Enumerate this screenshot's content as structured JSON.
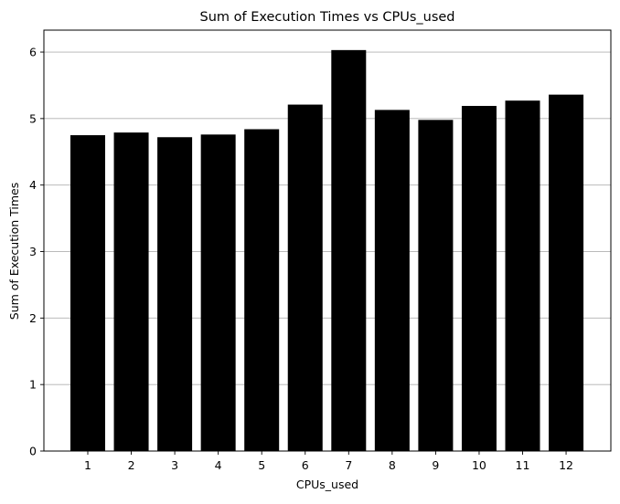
{
  "chart_data": {
    "type": "bar",
    "title": "Sum of Execution Times vs CPUs_used",
    "xlabel": "CPUs_used",
    "ylabel": "Sum of Execution Times",
    "categories": [
      "1",
      "2",
      "3",
      "4",
      "5",
      "6",
      "7",
      "8",
      "9",
      "10",
      "11",
      "12"
    ],
    "values": [
      4.75,
      4.79,
      4.72,
      4.76,
      4.84,
      5.21,
      6.03,
      5.13,
      4.98,
      5.19,
      5.27,
      5.36
    ],
    "yticks": [
      "0",
      "1",
      "2",
      "3",
      "4",
      "5",
      "6"
    ],
    "ylim": [
      0,
      6.33
    ],
    "grid": "y-axis horizontal lines",
    "legend": "none",
    "colors": {
      "bar": "#000000",
      "grid": "#b0b0b0",
      "axis": "#000000",
      "background": "#ffffff"
    }
  }
}
